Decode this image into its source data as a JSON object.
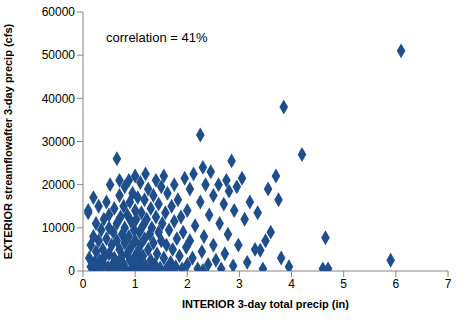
{
  "chart_data": {
    "type": "scatter",
    "x_label": "INTERIOR 3-day total precip (in)",
    "y_label": "EXTERIOR streamflowafter 3-day precip (cfs)",
    "annotations": [
      "correlation = 41%"
    ],
    "color": "#1f4e8c",
    "marker": "diamond",
    "grid": false,
    "xlim": [
      0,
      7
    ],
    "xticks": [
      0,
      1,
      2,
      3,
      4,
      5,
      6,
      7
    ],
    "ylim": [
      0,
      60000
    ],
    "yticks": [
      0,
      10000,
      20000,
      30000,
      40000,
      50000,
      60000
    ],
    "x": [
      0.1,
      0.1,
      0.12,
      0.15,
      0.15,
      0.18,
      0.2,
      0.2,
      0.22,
      0.25,
      0.25,
      0.28,
      0.3,
      0.3,
      0.32,
      0.35,
      0.35,
      0.38,
      0.4,
      0.4,
      0.42,
      0.45,
      0.45,
      0.48,
      0.5,
      0.5,
      0.5,
      0.52,
      0.55,
      0.55,
      0.58,
      0.6,
      0.6,
      0.62,
      0.65,
      0.65,
      0.65,
      0.68,
      0.7,
      0.7,
      0.7,
      0.72,
      0.72,
      0.75,
      0.75,
      0.78,
      0.78,
      0.8,
      0.8,
      0.8,
      0.82,
      0.85,
      0.85,
      0.88,
      0.88,
      0.9,
      0.9,
      0.92,
      0.92,
      0.95,
      0.95,
      0.98,
      0.98,
      1.0,
      1.0,
      1.0,
      1.0,
      1.02,
      1.05,
      1.05,
      1.08,
      1.08,
      1.1,
      1.1,
      1.12,
      1.12,
      1.15,
      1.15,
      1.18,
      1.18,
      1.2,
      1.2,
      1.22,
      1.25,
      1.25,
      1.28,
      1.28,
      1.3,
      1.3,
      1.32,
      1.35,
      1.35,
      1.38,
      1.4,
      1.4,
      1.42,
      1.45,
      1.45,
      1.48,
      1.5,
      1.5,
      1.52,
      1.55,
      1.55,
      1.58,
      1.6,
      1.6,
      1.62,
      1.65,
      1.68,
      1.7,
      1.72,
      1.75,
      1.75,
      1.78,
      1.8,
      1.82,
      1.85,
      1.88,
      1.9,
      1.92,
      1.95,
      1.98,
      2.0,
      2.0,
      2.05,
      2.05,
      2.1,
      2.12,
      2.15,
      2.2,
      2.25,
      2.25,
      2.28,
      2.3,
      2.32,
      2.35,
      2.4,
      2.42,
      2.45,
      2.5,
      2.5,
      2.55,
      2.6,
      2.62,
      2.65,
      2.7,
      2.72,
      2.75,
      2.78,
      2.8,
      2.85,
      2.88,
      2.9,
      2.95,
      2.98,
      3.05,
      3.1,
      3.15,
      3.2,
      3.3,
      3.35,
      3.4,
      3.45,
      3.5,
      3.55,
      3.6,
      3.7,
      3.75,
      3.8,
      3.85,
      3.95,
      4.2,
      4.6,
      4.65,
      4.7,
      5.9,
      6.1,
      0.3,
      0.6,
      1.1,
      1.4,
      0.9,
      1.7,
      2.3
    ],
    "values": [
      14000,
      13500,
      3000,
      1000,
      6000,
      500,
      17000,
      8000,
      2000,
      4500,
      11000,
      300,
      7000,
      15000,
      2500,
      9500,
      500,
      5000,
      12000,
      1500,
      3500,
      16000,
      7500,
      800,
      10000,
      4000,
      13000,
      20000,
      6000,
      1200,
      9000,
      14500,
      3000,
      500,
      26000,
      11000,
      7000,
      2000,
      21000,
      17500,
      5000,
      12500,
      800,
      8500,
      3500,
      15000,
      1500,
      19500,
      10000,
      6500,
      300,
      13000,
      4000,
      21000,
      8000,
      2500,
      16000,
      11500,
      5500,
      700,
      18000,
      9500,
      3000,
      14000,
      7000,
      1000,
      22000,
      12000,
      4500,
      17000,
      2000,
      9000,
      20500,
      6000,
      500,
      13500,
      10500,
      3500,
      16500,
      7500,
      1200,
      22500,
      12000,
      5000,
      19000,
      8500,
      300,
      14500,
      2500,
      10000,
      6500,
      17500,
      1500,
      12500,
      21000,
      4000,
      9000,
      15500,
      700,
      7000,
      19500,
      11000,
      3000,
      22000,
      13500,
      6000,
      500,
      18000,
      9500,
      2000,
      15000,
      5000,
      11500,
      20000,
      1000,
      7500,
      16500,
      3500,
      12500,
      500,
      9000,
      21500,
      5500,
      14000,
      1500,
      19000,
      7000,
      3000,
      22500,
      10500,
      500,
      31500,
      16000,
      4500,
      24000,
      8000,
      20000,
      1500,
      13000,
      23000,
      6000,
      17500,
      2500,
      20000,
      11000,
      500,
      15500,
      4000,
      21000,
      8500,
      18500,
      25500,
      1200,
      14000,
      19500,
      6000,
      21500,
      12000,
      2000,
      16000,
      5000,
      13500,
      4800,
      500,
      7000,
      19000,
      9000,
      22000,
      16500,
      3000,
      38000,
      1000,
      27000,
      500,
      7700,
      500,
      2500,
      51000,
      0,
      100,
      100,
      0,
      0,
      200,
      100
    ]
  }
}
